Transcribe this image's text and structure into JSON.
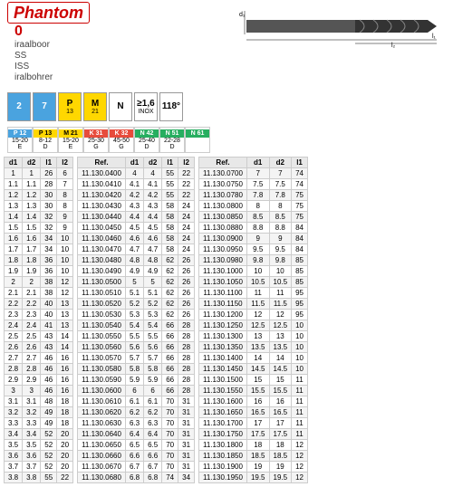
{
  "brand": "Phantom",
  "code": "0",
  "subtitle": [
    "iraalboor",
    "SS",
    "ISS",
    "iralbohrer"
  ],
  "dims": {
    "d1": "d₁",
    "l1": "l₁",
    "l2": "l₂"
  },
  "icons": [
    {
      "t": "2",
      "s": "",
      "c": "bl"
    },
    {
      "t": "7",
      "s": "",
      "c": "bl"
    },
    {
      "t": "P",
      "s": "13",
      "c": "ye"
    },
    {
      "t": "M",
      "s": "21",
      "c": "ye"
    },
    {
      "t": "N",
      "s": "",
      "c": ""
    },
    {
      "t": "≥1,6",
      "s": "INOX",
      "c": ""
    },
    {
      "t": "118°",
      "s": "",
      "c": ""
    }
  ],
  "mats": [
    {
      "h": "P 12",
      "c": "bl",
      "v": "15-20",
      "e": "E"
    },
    {
      "h": "P 13",
      "c": "ye",
      "v": "8-12",
      "e": "D"
    },
    {
      "h": "M 21",
      "c": "ye",
      "v": "15-20",
      "e": "E"
    },
    {
      "h": "K 31",
      "c": "rd",
      "v": "25-30",
      "e": "G"
    },
    {
      "h": "K 32",
      "c": "rd",
      "v": "45-50",
      "e": "G"
    },
    {
      "h": "N 42",
      "c": "gn",
      "v": "25-40",
      "e": "D"
    },
    {
      "h": "N 51",
      "c": "gn",
      "v": "22-28",
      "e": "D"
    },
    {
      "h": "N 61",
      "c": "gn",
      "v": "",
      "e": ""
    }
  ],
  "t1": {
    "cols": [
      "d1",
      "d2",
      "l1",
      "l2"
    ],
    "rows": [
      [
        "1",
        "1",
        "26",
        "6"
      ],
      [
        "1.1",
        "1.1",
        "28",
        "7"
      ],
      [
        "1.2",
        "1.2",
        "30",
        "8"
      ],
      [
        "1.3",
        "1.3",
        "30",
        "8"
      ],
      [
        "1.4",
        "1.4",
        "32",
        "9"
      ],
      [
        "1.5",
        "1.5",
        "32",
        "9"
      ],
      [
        "1.6",
        "1.6",
        "34",
        "10"
      ],
      [
        "1.7",
        "1.7",
        "34",
        "10"
      ],
      [
        "1.8",
        "1.8",
        "36",
        "10"
      ],
      [
        "1.9",
        "1.9",
        "36",
        "10"
      ],
      [
        "2",
        "2",
        "38",
        "12"
      ],
      [
        "2.1",
        "2.1",
        "38",
        "12"
      ],
      [
        "2.2",
        "2.2",
        "40",
        "13"
      ],
      [
        "2.3",
        "2.3",
        "40",
        "13"
      ],
      [
        "2.4",
        "2.4",
        "41",
        "13"
      ],
      [
        "2.5",
        "2.5",
        "43",
        "14"
      ],
      [
        "2.6",
        "2.6",
        "43",
        "14"
      ],
      [
        "2.7",
        "2.7",
        "46",
        "16"
      ],
      [
        "2.8",
        "2.8",
        "46",
        "16"
      ],
      [
        "2.9",
        "2.9",
        "46",
        "16"
      ],
      [
        "3",
        "3",
        "46",
        "16"
      ],
      [
        "3.1",
        "3.1",
        "48",
        "18"
      ],
      [
        "3.2",
        "3.2",
        "49",
        "18"
      ],
      [
        "3.3",
        "3.3",
        "49",
        "18"
      ],
      [
        "3.4",
        "3.4",
        "52",
        "20"
      ],
      [
        "3.5",
        "3.5",
        "52",
        "20"
      ],
      [
        "3.6",
        "3.6",
        "52",
        "20"
      ],
      [
        "3.7",
        "3.7",
        "52",
        "20"
      ],
      [
        "3.8",
        "3.8",
        "55",
        "22"
      ]
    ]
  },
  "t2": {
    "cols": [
      "Ref.",
      "d1",
      "d2",
      "l1",
      "l2"
    ],
    "rows": [
      [
        "11.130.0400",
        "4",
        "4",
        "55",
        "22"
      ],
      [
        "11.130.0410",
        "4.1",
        "4.1",
        "55",
        "22"
      ],
      [
        "11.130.0420",
        "4.2",
        "4.2",
        "55",
        "22"
      ],
      [
        "11.130.0430",
        "4.3",
        "4.3",
        "58",
        "24"
      ],
      [
        "11.130.0440",
        "4.4",
        "4.4",
        "58",
        "24"
      ],
      [
        "11.130.0450",
        "4.5",
        "4.5",
        "58",
        "24"
      ],
      [
        "11.130.0460",
        "4.6",
        "4.6",
        "58",
        "24"
      ],
      [
        "11.130.0470",
        "4.7",
        "4.7",
        "58",
        "24"
      ],
      [
        "11.130.0480",
        "4.8",
        "4.8",
        "62",
        "26"
      ],
      [
        "11.130.0490",
        "4.9",
        "4.9",
        "62",
        "26"
      ],
      [
        "11.130.0500",
        "5",
        "5",
        "62",
        "26"
      ],
      [
        "11.130.0510",
        "5.1",
        "5.1",
        "62",
        "26"
      ],
      [
        "11.130.0520",
        "5.2",
        "5.2",
        "62",
        "26"
      ],
      [
        "11.130.0530",
        "5.3",
        "5.3",
        "62",
        "26"
      ],
      [
        "11.130.0540",
        "5.4",
        "5.4",
        "66",
        "28"
      ],
      [
        "11.130.0550",
        "5.5",
        "5.5",
        "66",
        "28"
      ],
      [
        "11.130.0560",
        "5.6",
        "5.6",
        "66",
        "28"
      ],
      [
        "11.130.0570",
        "5.7",
        "5.7",
        "66",
        "28"
      ],
      [
        "11.130.0580",
        "5.8",
        "5.8",
        "66",
        "28"
      ],
      [
        "11.130.0590",
        "5.9",
        "5.9",
        "66",
        "28"
      ],
      [
        "11.130.0600",
        "6",
        "6",
        "66",
        "28"
      ],
      [
        "11.130.0610",
        "6.1",
        "6.1",
        "70",
        "31"
      ],
      [
        "11.130.0620",
        "6.2",
        "6.2",
        "70",
        "31"
      ],
      [
        "11.130.0630",
        "6.3",
        "6.3",
        "70",
        "31"
      ],
      [
        "11.130.0640",
        "6.4",
        "6.4",
        "70",
        "31"
      ],
      [
        "11.130.0650",
        "6.5",
        "6.5",
        "70",
        "31"
      ],
      [
        "11.130.0660",
        "6.6",
        "6.6",
        "70",
        "31"
      ],
      [
        "11.130.0670",
        "6.7",
        "6.7",
        "70",
        "31"
      ],
      [
        "11.130.0680",
        "6.8",
        "6.8",
        "74",
        "34"
      ]
    ]
  },
  "t3": {
    "cols": [
      "Ref.",
      "d1",
      "d2",
      "l1"
    ],
    "rows": [
      [
        "11.130.0700",
        "7",
        "7",
        "74"
      ],
      [
        "11.130.0750",
        "7.5",
        "7.5",
        "74"
      ],
      [
        "11.130.0780",
        "7.8",
        "7.8",
        "75"
      ],
      [
        "11.130.0800",
        "8",
        "8",
        "75"
      ],
      [
        "11.130.0850",
        "8.5",
        "8.5",
        "75"
      ],
      [
        "11.130.0880",
        "8.8",
        "8.8",
        "84"
      ],
      [
        "11.130.0900",
        "9",
        "9",
        "84"
      ],
      [
        "11.130.0950",
        "9.5",
        "9.5",
        "84"
      ],
      [
        "11.130.0980",
        "9.8",
        "9.8",
        "85"
      ],
      [
        "11.130.1000",
        "10",
        "10",
        "85"
      ],
      [
        "11.130.1050",
        "10.5",
        "10.5",
        "85"
      ],
      [
        "11.130.1100",
        "11",
        "11",
        "95"
      ],
      [
        "11.130.1150",
        "11.5",
        "11.5",
        "95"
      ],
      [
        "11.130.1200",
        "12",
        "12",
        "95"
      ],
      [
        "11.130.1250",
        "12.5",
        "12.5",
        "10"
      ],
      [
        "11.130.1300",
        "13",
        "13",
        "10"
      ],
      [
        "11.130.1350",
        "13.5",
        "13.5",
        "10"
      ],
      [
        "11.130.1400",
        "14",
        "14",
        "10"
      ],
      [
        "11.130.1450",
        "14.5",
        "14.5",
        "10"
      ],
      [
        "11.130.1500",
        "15",
        "15",
        "11"
      ],
      [
        "11.130.1550",
        "15.5",
        "15.5",
        "11"
      ],
      [
        "11.130.1600",
        "16",
        "16",
        "11"
      ],
      [
        "11.130.1650",
        "16.5",
        "16.5",
        "11"
      ],
      [
        "11.130.1700",
        "17",
        "17",
        "11"
      ],
      [
        "11.130.1750",
        "17.5",
        "17.5",
        "11"
      ],
      [
        "11.130.1800",
        "18",
        "18",
        "12"
      ],
      [
        "11.130.1850",
        "18.5",
        "18.5",
        "12"
      ],
      [
        "11.130.1900",
        "19",
        "19",
        "12"
      ],
      [
        "11.130.1950",
        "19.5",
        "19.5",
        "12"
      ]
    ]
  }
}
